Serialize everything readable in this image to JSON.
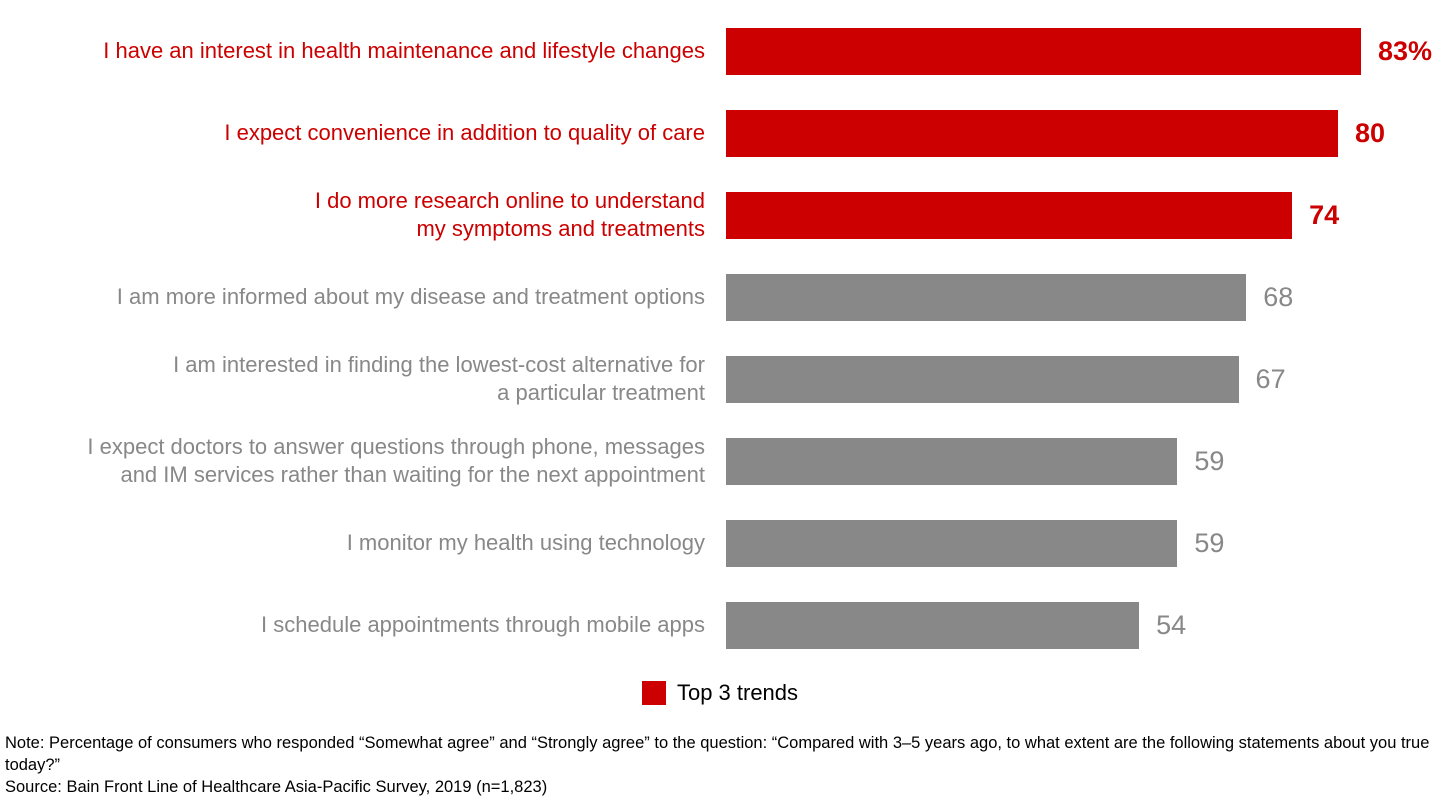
{
  "chart_data": {
    "type": "bar",
    "orientation": "horizontal",
    "title": "",
    "xlabel": "",
    "ylabel": "",
    "xlim": [
      0,
      93
    ],
    "grid": false,
    "highlight_top_n": 3,
    "categories": [
      "I have an interest in health maintenance and lifestyle changes",
      "I expect convenience in addition to quality of care",
      "I do more research online to understand\nmy symptoms and treatments",
      "I am more informed about my disease and treatment options",
      "I am interested in finding the lowest-cost alternative for\na particular treatment",
      "I expect doctors to answer questions through phone, messages\nand IM services rather than waiting for the next appointment",
      "I monitor my health using technology",
      "I schedule appointments through mobile apps"
    ],
    "values": [
      83,
      80,
      74,
      68,
      67,
      59,
      59,
      54
    ],
    "value_labels": [
      "83%",
      "80",
      "74",
      "68",
      "67",
      "59",
      "59",
      "54"
    ],
    "legend_position": "bottom-center"
  },
  "colors": {
    "highlight": "#cc0000",
    "default_bar": "#888888",
    "highlight_text": "#cc0000",
    "gray_text": "#888888"
  },
  "legend": {
    "label": "Top 3 trends",
    "swatch_color": "#cc0000"
  },
  "notes": {
    "note_line": "Note: Percentage of consumers who responded “Somewhat agree” and “Strongly agree” to the question: “Compared with 3–5 years ago, to what extent are the following statements about you true today?”",
    "source_line": "Source: Bain Front Line of Healthcare Asia-Pacific Survey, 2019 (n=1,823)"
  }
}
